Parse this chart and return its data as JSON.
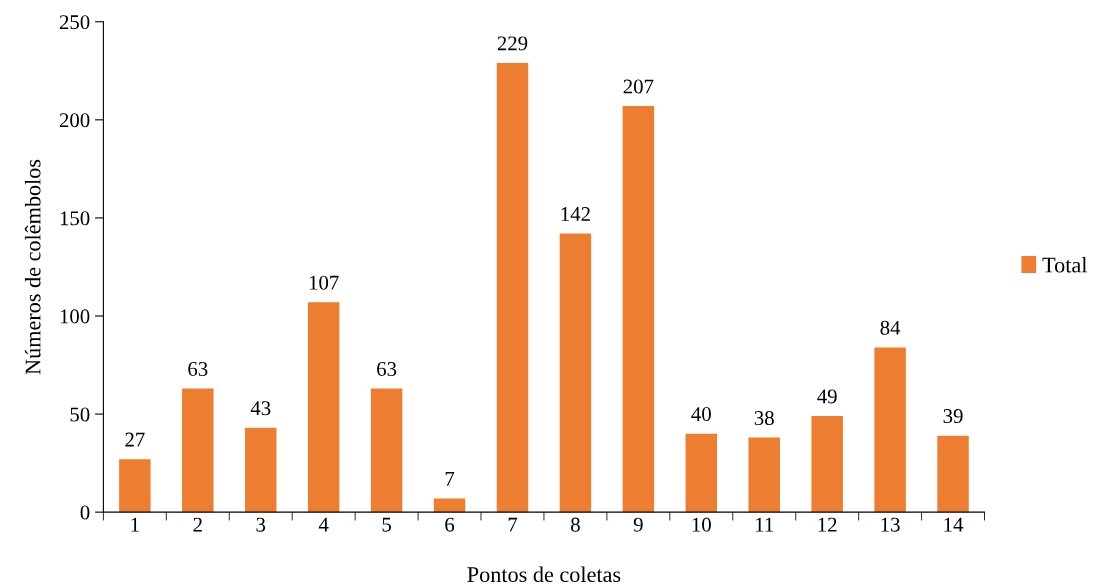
{
  "chart_data": {
    "type": "bar",
    "xlabel": "Pontos de coletas",
    "ylabel": "Números de colêmbolos",
    "categories": [
      "1",
      "2",
      "3",
      "4",
      "5",
      "6",
      "7",
      "8",
      "9",
      "10",
      "11",
      "12",
      "13",
      "14"
    ],
    "series": [
      {
        "name": "Total",
        "color": "#ed7d31",
        "values": [
          27,
          63,
          43,
          107,
          63,
          7,
          229,
          142,
          207,
          40,
          38,
          49,
          84,
          39
        ]
      }
    ],
    "ylim": [
      0,
      250
    ],
    "yticks": [
      0,
      50,
      100,
      150,
      200,
      250
    ],
    "data_labels": true,
    "legend": "right",
    "grid": false
  }
}
